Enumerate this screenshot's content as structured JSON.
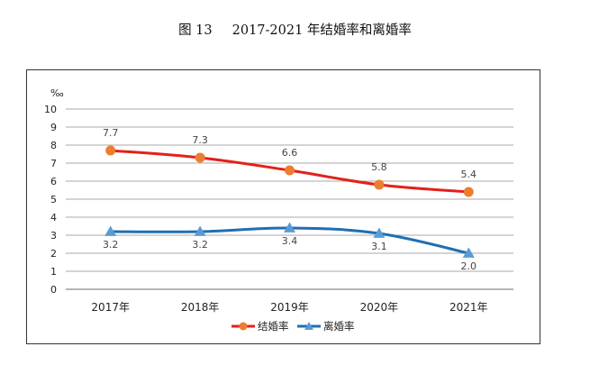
{
  "caption": {
    "figure": "图 13",
    "title": "2017-2021 年结婚率和离婚率"
  },
  "chart_data": {
    "type": "line",
    "title": "2017-2021 年结婚率和离婚率",
    "ylabel": "‰",
    "xlabel": "",
    "ylim": [
      0,
      10
    ],
    "yticks": [
      0,
      1,
      2,
      3,
      4,
      5,
      6,
      7,
      8,
      9,
      10
    ],
    "categories": [
      "2017年",
      "2018年",
      "2019年",
      "2020年",
      "2021年"
    ],
    "series": [
      {
        "name": "结婚率",
        "values": [
          7.7,
          7.3,
          6.6,
          5.8,
          5.4
        ],
        "labels": [
          "7.7",
          "7.3",
          "6.6",
          "5.8",
          "5.4"
        ],
        "color": "#e32119",
        "marker": "circle",
        "marker_color": "#ed7d31"
      },
      {
        "name": "离婚率",
        "values": [
          3.2,
          3.2,
          3.4,
          3.1,
          2.0
        ],
        "labels": [
          "3.2",
          "3.2",
          "3.4",
          "3.1",
          "2.0"
        ],
        "color": "#1f6fb2",
        "marker": "triangle",
        "marker_color": "#5b9bd5"
      }
    ],
    "grid": true,
    "legend": "bottom"
  }
}
